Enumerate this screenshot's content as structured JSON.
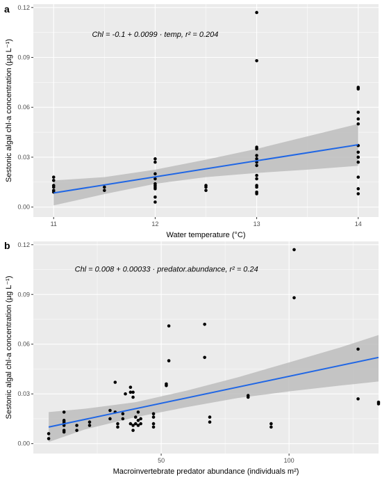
{
  "chart_data": [
    {
      "type": "scatter",
      "panel_label": "a",
      "xlabel": "Water temperature (°C)",
      "ylabel": "Sestonic algal chl-a  concentration (µg L⁻¹)",
      "xlim": [
        10.8,
        14.2
      ],
      "ylim": [
        -0.006,
        0.122
      ],
      "xticks": [
        11,
        12,
        13,
        14
      ],
      "xtick_labels": [
        "11",
        "12",
        "13",
        "14"
      ],
      "yticks": [
        0.0,
        0.03,
        0.06,
        0.09,
        0.12
      ],
      "ytick_labels": [
        "0.00",
        "0.03",
        "0.06",
        "0.09",
        "0.12"
      ],
      "grid": true,
      "annotation": "Chl = -0.1 + 0.0099 · temp,  r² = 0.204",
      "points": [
        {
          "x": 11,
          "y": 0.018
        },
        {
          "x": 11,
          "y": 0.016
        },
        {
          "x": 11,
          "y": 0.013
        },
        {
          "x": 11,
          "y": 0.012
        },
        {
          "x": 11,
          "y": 0.01
        },
        {
          "x": 11,
          "y": 0.009
        },
        {
          "x": 11.5,
          "y": 0.012
        },
        {
          "x": 11.5,
          "y": 0.01
        },
        {
          "x": 12,
          "y": 0.029
        },
        {
          "x": 12,
          "y": 0.027
        },
        {
          "x": 12,
          "y": 0.02
        },
        {
          "x": 12,
          "y": 0.017
        },
        {
          "x": 12,
          "y": 0.014
        },
        {
          "x": 12,
          "y": 0.013
        },
        {
          "x": 12,
          "y": 0.012
        },
        {
          "x": 12,
          "y": 0.011
        },
        {
          "x": 12,
          "y": 0.006
        },
        {
          "x": 12,
          "y": 0.003
        },
        {
          "x": 12.5,
          "y": 0.013
        },
        {
          "x": 12.5,
          "y": 0.012
        },
        {
          "x": 12.5,
          "y": 0.01
        },
        {
          "x": 13,
          "y": 0.117
        },
        {
          "x": 13,
          "y": 0.088
        },
        {
          "x": 13,
          "y": 0.036
        },
        {
          "x": 13,
          "y": 0.035
        },
        {
          "x": 13,
          "y": 0.031
        },
        {
          "x": 13,
          "y": 0.029
        },
        {
          "x": 13,
          "y": 0.027
        },
        {
          "x": 13,
          "y": 0.025
        },
        {
          "x": 13,
          "y": 0.019
        },
        {
          "x": 13,
          "y": 0.017
        },
        {
          "x": 13,
          "y": 0.013
        },
        {
          "x": 13,
          "y": 0.012
        },
        {
          "x": 13,
          "y": 0.009
        },
        {
          "x": 13,
          "y": 0.008
        },
        {
          "x": 14,
          "y": 0.072
        },
        {
          "x": 14,
          "y": 0.071
        },
        {
          "x": 14,
          "y": 0.057
        },
        {
          "x": 14,
          "y": 0.053
        },
        {
          "x": 14,
          "y": 0.05
        },
        {
          "x": 14,
          "y": 0.037
        },
        {
          "x": 14,
          "y": 0.033
        },
        {
          "x": 14,
          "y": 0.03
        },
        {
          "x": 14,
          "y": 0.027
        },
        {
          "x": 14,
          "y": 0.018
        },
        {
          "x": 14,
          "y": 0.011
        },
        {
          "x": 14,
          "y": 0.008
        }
      ],
      "fit_line": {
        "x": [
          11,
          14
        ],
        "y": [
          0.0085,
          0.0375
        ]
      },
      "confidence_band": {
        "x": [
          11,
          11.5,
          12,
          12.5,
          13,
          13.5,
          14
        ],
        "lower": [
          0.001,
          0.0078,
          0.014,
          0.018,
          0.0205,
          0.0225,
          0.0248
        ],
        "upper": [
          0.016,
          0.018,
          0.0225,
          0.0285,
          0.035,
          0.0425,
          0.05
        ]
      },
      "colors": {
        "points": "#000000",
        "line": "#1f66e5",
        "band": "#bdbdbd",
        "panel": "#ebebeb",
        "grid": "#ffffff"
      }
    },
    {
      "type": "scatter",
      "panel_label": "b",
      "xlabel": "Macroinvertebrate predator abundance (individuals m²)",
      "ylabel": "Sestonic algal chl-a  concentration (µg L⁻¹)",
      "xlim": [
        0,
        135
      ],
      "ylim": [
        -0.006,
        0.122
      ],
      "xticks": [
        50,
        100
      ],
      "xtick_labels": [
        "50",
        "100"
      ],
      "yticks": [
        0.0,
        0.03,
        0.06,
        0.09,
        0.12
      ],
      "ytick_labels": [
        "0.00",
        "0.03",
        "0.06",
        "0.09",
        "0.12"
      ],
      "grid": true,
      "annotation": "Chl = 0.008 + 0.00033 · predator.abundance,  r² = 0.24",
      "points": [
        {
          "x": 6,
          "y": 0.006
        },
        {
          "x": 6,
          "y": 0.003
        },
        {
          "x": 12,
          "y": 0.019
        },
        {
          "x": 12,
          "y": 0.014
        },
        {
          "x": 12,
          "y": 0.013
        },
        {
          "x": 12,
          "y": 0.012
        },
        {
          "x": 12,
          "y": 0.011
        },
        {
          "x": 12,
          "y": 0.008
        },
        {
          "x": 12,
          "y": 0.007
        },
        {
          "x": 17,
          "y": 0.011
        },
        {
          "x": 17,
          "y": 0.008
        },
        {
          "x": 22,
          "y": 0.013
        },
        {
          "x": 22,
          "y": 0.011
        },
        {
          "x": 30,
          "y": 0.02
        },
        {
          "x": 30,
          "y": 0.015
        },
        {
          "x": 32,
          "y": 0.037
        },
        {
          "x": 32,
          "y": 0.019
        },
        {
          "x": 33,
          "y": 0.012
        },
        {
          "x": 33,
          "y": 0.01
        },
        {
          "x": 35,
          "y": 0.018
        },
        {
          "x": 35,
          "y": 0.015
        },
        {
          "x": 36,
          "y": 0.03
        },
        {
          "x": 38,
          "y": 0.034
        },
        {
          "x": 38,
          "y": 0.031
        },
        {
          "x": 38,
          "y": 0.012
        },
        {
          "x": 39,
          "y": 0.031
        },
        {
          "x": 39,
          "y": 0.028
        },
        {
          "x": 39,
          "y": 0.011
        },
        {
          "x": 39,
          "y": 0.008
        },
        {
          "x": 40,
          "y": 0.016
        },
        {
          "x": 40,
          "y": 0.012
        },
        {
          "x": 41,
          "y": 0.019
        },
        {
          "x": 41,
          "y": 0.014
        },
        {
          "x": 41,
          "y": 0.011
        },
        {
          "x": 42,
          "y": 0.015
        },
        {
          "x": 42,
          "y": 0.012
        },
        {
          "x": 47,
          "y": 0.018
        },
        {
          "x": 47,
          "y": 0.016
        },
        {
          "x": 47,
          "y": 0.012
        },
        {
          "x": 47,
          "y": 0.01
        },
        {
          "x": 52,
          "y": 0.036
        },
        {
          "x": 52,
          "y": 0.035
        },
        {
          "x": 53,
          "y": 0.071
        },
        {
          "x": 53,
          "y": 0.05
        },
        {
          "x": 67,
          "y": 0.072
        },
        {
          "x": 67,
          "y": 0.052
        },
        {
          "x": 69,
          "y": 0.016
        },
        {
          "x": 69,
          "y": 0.013
        },
        {
          "x": 84,
          "y": 0.029
        },
        {
          "x": 84,
          "y": 0.028
        },
        {
          "x": 93,
          "y": 0.012
        },
        {
          "x": 93,
          "y": 0.01
        },
        {
          "x": 102,
          "y": 0.117
        },
        {
          "x": 102,
          "y": 0.088
        },
        {
          "x": 127,
          "y": 0.057
        },
        {
          "x": 127,
          "y": 0.027
        },
        {
          "x": 135,
          "y": 0.025
        },
        {
          "x": 135,
          "y": 0.024
        }
      ],
      "fit_line": {
        "x": [
          6,
          135
        ],
        "y": [
          0.01,
          0.052
        ]
      },
      "confidence_band": {
        "x": [
          6,
          20,
          40,
          60,
          80,
          100,
          120,
          135
        ],
        "lower": [
          0.001,
          0.0085,
          0.016,
          0.022,
          0.0275,
          0.0315,
          0.035,
          0.0375
        ],
        "upper": [
          0.019,
          0.021,
          0.025,
          0.032,
          0.04,
          0.049,
          0.058,
          0.0655
        ]
      },
      "colors": {
        "points": "#000000",
        "line": "#1f66e5",
        "band": "#bdbdbd",
        "panel": "#ebebeb",
        "grid": "#ffffff"
      }
    }
  ]
}
